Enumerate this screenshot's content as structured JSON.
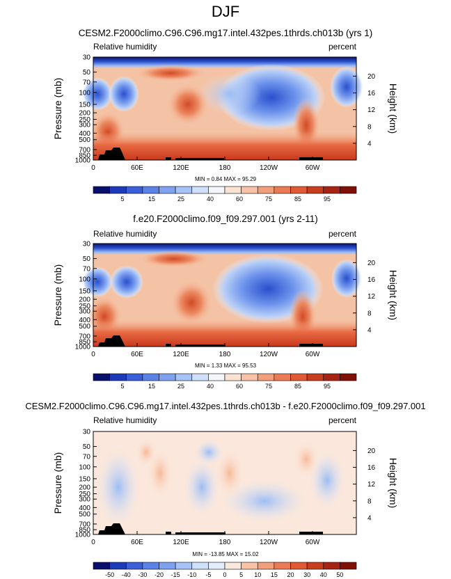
{
  "page_title": "DJF",
  "chart_data": [
    {
      "type": "heatmap",
      "title": "CESM2.F2000climo.C96.C96.mg17.intel.432pes.1thrds.ch013b (yrs 1)",
      "left_label": "Relative humidity",
      "right_label": "percent",
      "ylabel": "Pressure (mb)",
      "ylabel_right": "Height (km)",
      "x_ticks": [
        "0",
        "60E",
        "120E",
        "180",
        "120W",
        "60W"
      ],
      "y_ticks": [
        "30",
        "50",
        "70",
        "100",
        "150",
        "200",
        "250",
        "300",
        "400",
        "500",
        "700",
        "850",
        "1000"
      ],
      "y_ticks_right": [
        "20",
        "16",
        "12",
        "8",
        "4"
      ],
      "stats": "MIN =   0.84  MAX =  95.29",
      "colorbar_labels": [
        "5",
        "15",
        "25",
        "40",
        "60",
        "75",
        "85",
        "95"
      ],
      "colorbar_colors": [
        "#08106b",
        "#1d3ab8",
        "#3a5fd8",
        "#5b82e8",
        "#7fa2f0",
        "#a6c2f6",
        "#cfe0fa",
        "#f3f6fb",
        "#fbe2d2",
        "#f7c2a6",
        "#f29f7c",
        "#ec7b55",
        "#e05a35",
        "#c93d1f",
        "#a82412",
        "#801006"
      ]
    },
    {
      "type": "heatmap",
      "title": "f.e20.F2000climo.f09_f09.297.001 (yrs 2-11)",
      "left_label": "Relative humidity",
      "right_label": "percent",
      "ylabel": "Pressure (mb)",
      "ylabel_right": "Height (km)",
      "x_ticks": [
        "0",
        "60E",
        "120E",
        "180",
        "120W",
        "60W"
      ],
      "y_ticks": [
        "30",
        "50",
        "70",
        "100",
        "150",
        "200",
        "250",
        "300",
        "400",
        "500",
        "700",
        "850",
        "1000"
      ],
      "y_ticks_right": [
        "20",
        "16",
        "12",
        "8",
        "4"
      ],
      "stats": "MIN =   1.33  MAX =  95.53",
      "colorbar_labels": [
        "5",
        "15",
        "25",
        "40",
        "60",
        "75",
        "85",
        "95"
      ],
      "colorbar_colors": [
        "#08106b",
        "#1d3ab8",
        "#3a5fd8",
        "#5b82e8",
        "#7fa2f0",
        "#a6c2f6",
        "#cfe0fa",
        "#f3f6fb",
        "#fbe2d2",
        "#f7c2a6",
        "#f29f7c",
        "#ec7b55",
        "#e05a35",
        "#c93d1f",
        "#a82412",
        "#801006"
      ]
    },
    {
      "type": "heatmap",
      "title": "CESM2.F2000climo.C96.C96.mg17.intel.432pes.1thrds.ch013b - f.e20.F2000climo.f09_f09.297.001",
      "left_label": "Relative humidity",
      "right_label": "percent",
      "ylabel": "Pressure (mb)",
      "ylabel_right": "Height (km)",
      "x_ticks": [
        "0",
        "60E",
        "120E",
        "180",
        "120W",
        "60W"
      ],
      "y_ticks": [
        "30",
        "50",
        "70",
        "100",
        "150",
        "200",
        "250",
        "300",
        "400",
        "500",
        "700",
        "850",
        "1000"
      ],
      "y_ticks_right": [
        "20",
        "16",
        "12",
        "8",
        "4"
      ],
      "stats": "MIN = -13.85  MAX =  15.02",
      "colorbar_labels": [
        "-50",
        "-40",
        "-30",
        "-20",
        "-15",
        "-10",
        "-5",
        "0",
        "5",
        "10",
        "15",
        "20",
        "30",
        "40",
        "50"
      ],
      "colorbar_colors": [
        "#08106b",
        "#1d3ab8",
        "#3a5fd8",
        "#5b82e8",
        "#7fa2f0",
        "#a6c2f6",
        "#cfe0fa",
        "#e4edfb",
        "#fbe8dc",
        "#f7c2a6",
        "#f29f7c",
        "#ec7b55",
        "#e05a35",
        "#c93d1f",
        "#a82412",
        "#801006"
      ]
    }
  ]
}
